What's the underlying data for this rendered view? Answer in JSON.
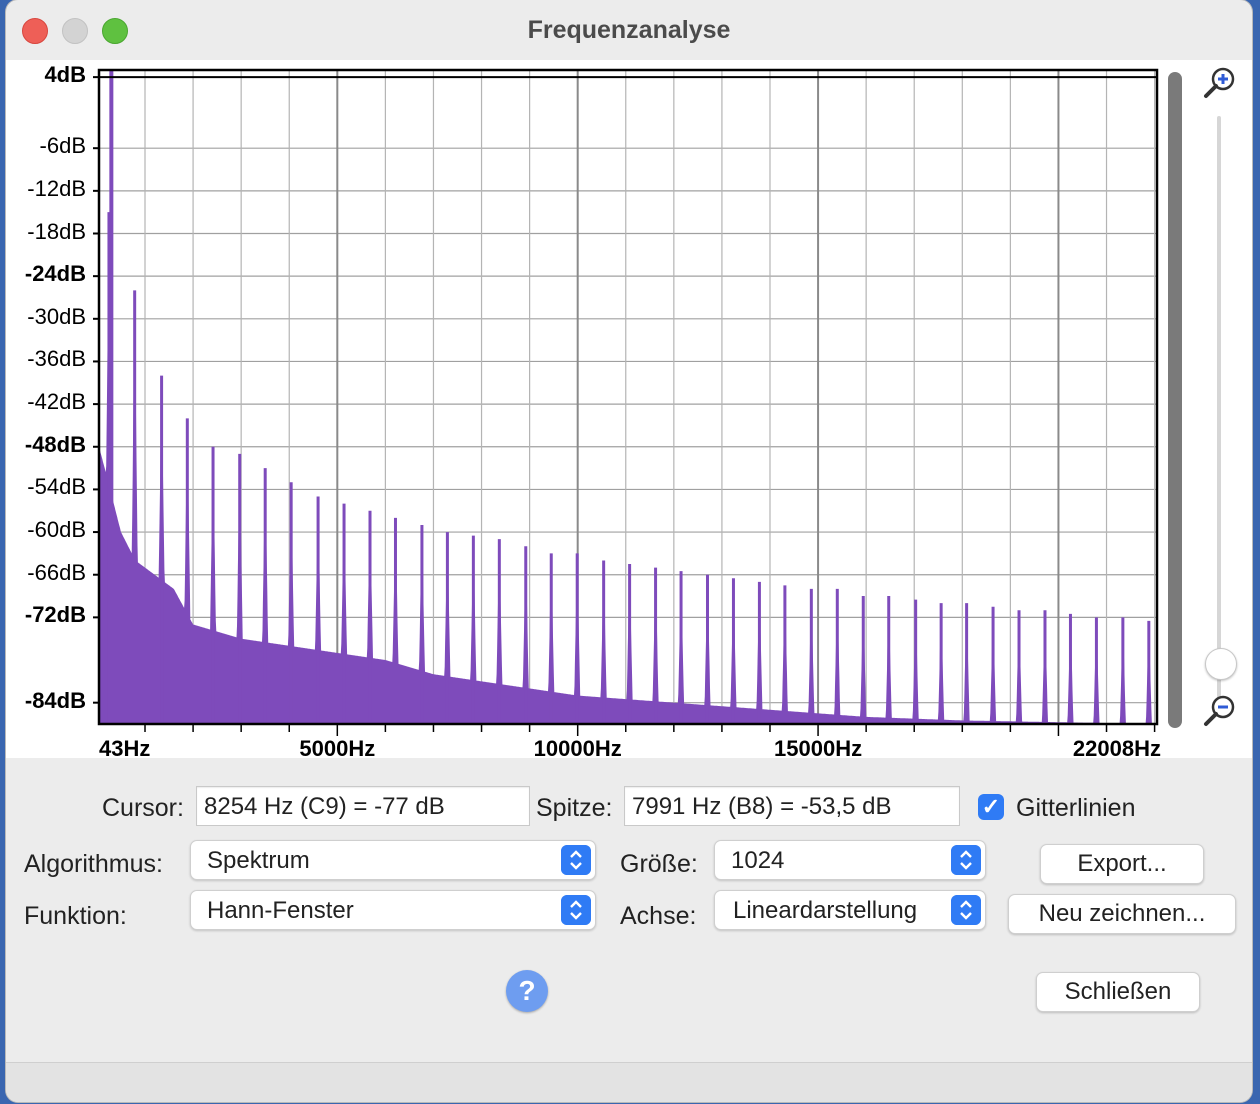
{
  "window": {
    "title": "Frequenzanalyse"
  },
  "chart_data": {
    "type": "area",
    "title": "",
    "xlabel": "",
    "ylabel": "",
    "xlim": [
      43,
      22050
    ],
    "ylim": [
      -87,
      5
    ],
    "color": "#7e4bbb",
    "grid": true,
    "y_tick_labels": [
      "4dB",
      "-6dB",
      "-12dB",
      "-18dB",
      "-24dB",
      "-30dB",
      "-36dB",
      "-42dB",
      "-48dB",
      "-54dB",
      "-60dB",
      "-66dB",
      "-72dB",
      "-84dB"
    ],
    "y_tick_values": [
      4,
      -6,
      -12,
      -18,
      -24,
      -30,
      -36,
      -42,
      -48,
      -54,
      -60,
      -66,
      -72,
      -84
    ],
    "y_tick_bold": [
      true,
      false,
      false,
      false,
      true,
      false,
      false,
      false,
      true,
      false,
      false,
      false,
      true,
      true
    ],
    "x_tick_labels": [
      "43Hz",
      "5000Hz",
      "10000Hz",
      "15000Hz",
      "22008Hz"
    ],
    "x_tick_values": [
      43,
      5000,
      10000,
      15000,
      22008
    ],
    "peak_frequencies": [
      250,
      785,
      1345,
      1880,
      2415,
      2970,
      3500,
      4040,
      4600,
      5140,
      5680,
      6210,
      6760,
      7290,
      7830,
      8370,
      8920,
      9450,
      9990,
      10540,
      11080,
      11620,
      12150,
      12700,
      13240,
      13780,
      14310,
      14860,
      15400,
      15940,
      16470,
      17030,
      17560,
      18090,
      18640,
      19180,
      19720,
      20250,
      20790,
      21340,
      21880
    ],
    "peak_levels": [
      -15,
      -26,
      -38,
      -44,
      -48,
      -49,
      -51,
      -53,
      -55,
      -56,
      -57,
      -58,
      -59,
      -60,
      -60.5,
      -61,
      -62,
      -63,
      -63,
      -64,
      -64.5,
      -65,
      -65.5,
      -66,
      -66.5,
      -67,
      -67.5,
      -68,
      -68,
      -69,
      -69,
      -69.5,
      -70,
      -70,
      -70.5,
      -71,
      -71,
      -71.5,
      -72,
      -72,
      -72.5
    ],
    "floor_points": [
      [
        43,
        -48
      ],
      [
        200,
        -52
      ],
      [
        500,
        -60
      ],
      [
        800,
        -64
      ],
      [
        1200,
        -66
      ],
      [
        1600,
        -68
      ],
      [
        2000,
        -73
      ],
      [
        3000,
        -75
      ],
      [
        4000,
        -76
      ],
      [
        5000,
        -77
      ],
      [
        6000,
        -78
      ],
      [
        7000,
        -80
      ],
      [
        8000,
        -81
      ],
      [
        10000,
        -83
      ],
      [
        12000,
        -84
      ],
      [
        14000,
        -85
      ],
      [
        16000,
        -86
      ],
      [
        18000,
        -86.5
      ],
      [
        22050,
        -87
      ]
    ]
  },
  "cursor": {
    "label": "Cursor:",
    "value": "8254 Hz (C9) = -77 dB"
  },
  "peak": {
    "label": "Spitze:",
    "value": "7991 Hz (B8) = -53,5 dB"
  },
  "gridlines": {
    "label": "Gitterlinien",
    "checked": true
  },
  "algorithm": {
    "label": "Algorithmus:",
    "value": "Spektrum"
  },
  "size": {
    "label": "Größe:",
    "value": "1024"
  },
  "function": {
    "label": "Funktion:",
    "value": "Hann-Fenster"
  },
  "axis": {
    "label": "Achse:",
    "value": "Lineardarstellung"
  },
  "buttons": {
    "export": "Export...",
    "redraw": "Neu zeichnen...",
    "close": "Schließen",
    "help": "?"
  },
  "colors": {
    "spectrum": "#7e4bbb",
    "accent": "#2f7bf5"
  }
}
